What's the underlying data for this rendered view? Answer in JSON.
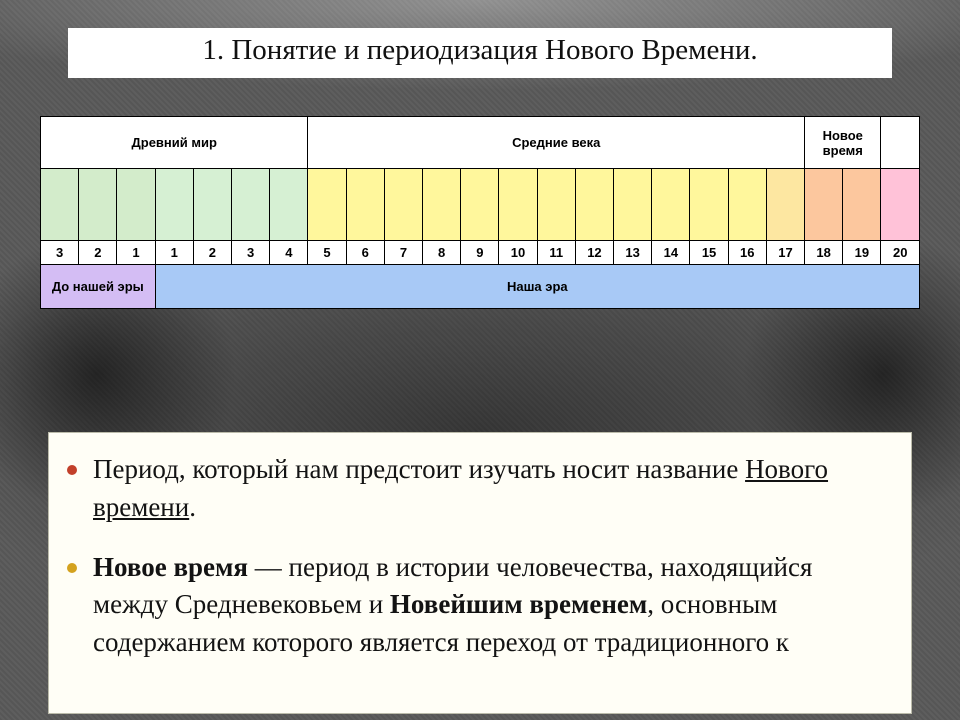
{
  "title": "1. Понятие  и периодизация Нового Времени.",
  "title_fontsize": 29,
  "title_bg": "#ffffff",
  "timeline": {
    "type": "table",
    "total_columns": 23,
    "periods": [
      {
        "label": "Древний мир",
        "span": 7,
        "bg": "#ffffff"
      },
      {
        "label": "Средние века",
        "span": 13,
        "bg": "#ffffff"
      },
      {
        "label": "Новое время",
        "span": 2,
        "bg": "#ffffff"
      },
      {
        "label": "",
        "span": 1,
        "bg": "#ffffff"
      }
    ],
    "century_cells": [
      {
        "bg": "#d3eccb"
      },
      {
        "bg": "#d3eccb"
      },
      {
        "bg": "#d3eccb"
      },
      {
        "bg": "#d6f0d3"
      },
      {
        "bg": "#d6f0d3"
      },
      {
        "bg": "#d6f0d3"
      },
      {
        "bg": "#d6f0d3"
      },
      {
        "bg": "#fff79c"
      },
      {
        "bg": "#fff79c"
      },
      {
        "bg": "#fff79c"
      },
      {
        "bg": "#fff79c"
      },
      {
        "bg": "#fff79c"
      },
      {
        "bg": "#fff79c"
      },
      {
        "bg": "#fff79c"
      },
      {
        "bg": "#fff79c"
      },
      {
        "bg": "#fff79c"
      },
      {
        "bg": "#fff79c"
      },
      {
        "bg": "#fff79c"
      },
      {
        "bg": "#fff79c"
      },
      {
        "bg": "#fde7a1"
      },
      {
        "bg": "#fcc79e"
      },
      {
        "bg": "#fcc79e"
      },
      {
        "bg": "#ffc2d8"
      }
    ],
    "century_numbers": [
      "3",
      "2",
      "1",
      "1",
      "2",
      "3",
      "4",
      "5",
      "6",
      "7",
      "8",
      "9",
      "10",
      "11",
      "12",
      "13",
      "14",
      "15",
      "16",
      "17",
      "18",
      "19",
      "20"
    ],
    "number_bg": "#ffffff",
    "eras": [
      {
        "label": "До нашей эры",
        "span": 3,
        "bg": "#d4bdf4"
      },
      {
        "label": "Наша эра",
        "span": 20,
        "bg": "#a8c9f6"
      }
    ],
    "border_color": "#000000",
    "header_fontsize": 13
  },
  "body": {
    "bg": "#fffef6",
    "bullets": [
      "#c2402a",
      "#d4a21e"
    ],
    "fontsize": 27,
    "p1_a": "Период, который нам предстоит изучать носит название ",
    "p1_u": "Нового времени",
    "p1_b": ".",
    "p2_a": "Новое время",
    "p2_b": " — период в истории человечества, находящийся между Средневековьем и ",
    "p2_c": "Новейшим временем",
    "p2_d": ", основным содержанием которого является переход от традиционного к"
  }
}
